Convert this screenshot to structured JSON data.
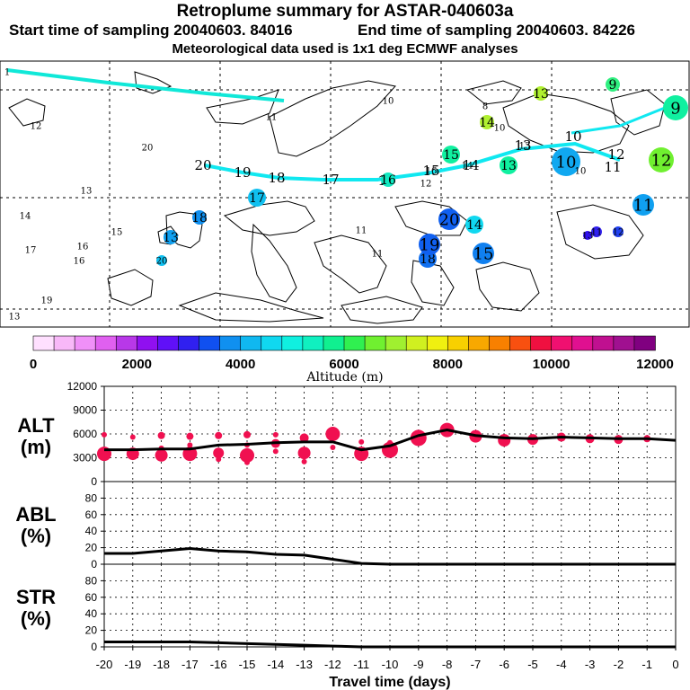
{
  "header": {
    "title": "Retroplume summary for ASTAR-040603a",
    "start": "Start time of sampling 20040603. 84016",
    "end": "End time of sampling 20040603. 84226",
    "met": "Meteorological data used is 1x1 deg ECMWF analyses"
  },
  "colorbar": {
    "label": "Altitude (m)",
    "ticks": [
      "0",
      "2000",
      "4000",
      "6000",
      "8000",
      "10000",
      "12000"
    ],
    "colors": [
      "#ffe0ff",
      "#f8b8f8",
      "#f090f8",
      "#e060f0",
      "#b838e8",
      "#9010f0",
      "#6010f8",
      "#3020f0",
      "#1050f0",
      "#1090f0",
      "#10b8f0",
      "#10d8f0",
      "#10f0e0",
      "#10f0c0",
      "#10f090",
      "#30f050",
      "#70f030",
      "#a0f030",
      "#d0f020",
      "#f0f010",
      "#f8d000",
      "#f8a800",
      "#f88000",
      "#f85010",
      "#f01040",
      "#f01070",
      "#e01090",
      "#c01090",
      "#a01090",
      "#800080"
    ]
  },
  "map": {
    "trajectory_labels": [
      "20",
      "19",
      "18",
      "17",
      "16",
      "15",
      "14",
      "13",
      "12",
      "11",
      "10",
      "9"
    ],
    "cluster_labels": [
      "1",
      "8",
      "9",
      "9",
      "10",
      "10",
      "10",
      "10",
      "11",
      "11",
      "11",
      "11",
      "12",
      "12",
      "12",
      "12",
      "13",
      "13",
      "13",
      "13",
      "13",
      "14",
      "14",
      "14",
      "14",
      "15",
      "15",
      "15",
      "16",
      "16",
      "16",
      "16",
      "17",
      "17",
      "18",
      "18",
      "19",
      "19",
      "20",
      "20",
      "20",
      "11",
      "13",
      "13"
    ]
  },
  "chart_data": [
    {
      "type": "line",
      "id": "alt",
      "ylabel": "ALT (m)",
      "ylabel_line1": "ALT",
      "ylabel_line2": "(m)",
      "ylim": [
        0,
        12000
      ],
      "yticks": [
        "0",
        "3000",
        "6000",
        "9000",
        "12000"
      ],
      "x": [
        -20,
        -19,
        -18,
        -17,
        -16,
        -15,
        -14,
        -13,
        -12,
        -11,
        -10,
        -9,
        -8,
        -7,
        -6,
        -5,
        -4,
        -3,
        -2,
        -1,
        0
      ],
      "values": [
        4000,
        4000,
        4100,
        4100,
        4600,
        4700,
        4900,
        5000,
        5000,
        4000,
        4500,
        5800,
        6500,
        5800,
        5500,
        5400,
        5600,
        5500,
        5400,
        5400,
        5200
      ],
      "scatter": [
        {
          "x": -20,
          "y": 3500,
          "s": 8
        },
        {
          "x": -20,
          "y": 5900,
          "s": 3
        },
        {
          "x": -19,
          "y": 3500,
          "s": 7
        },
        {
          "x": -19,
          "y": 5600,
          "s": 3
        },
        {
          "x": -18,
          "y": 3300,
          "s": 7
        },
        {
          "x": -18,
          "y": 5800,
          "s": 4
        },
        {
          "x": -18,
          "y": 4200,
          "s": 3
        },
        {
          "x": -17,
          "y": 3500,
          "s": 8
        },
        {
          "x": -17,
          "y": 5700,
          "s": 4
        },
        {
          "x": -17,
          "y": 4600,
          "s": 3
        },
        {
          "x": -16,
          "y": 3600,
          "s": 6
        },
        {
          "x": -16,
          "y": 5800,
          "s": 4
        },
        {
          "x": -16,
          "y": 2800,
          "s": 3
        },
        {
          "x": -15,
          "y": 3300,
          "s": 8
        },
        {
          "x": -15,
          "y": 5900,
          "s": 4
        },
        {
          "x": -15,
          "y": 4600,
          "s": 3
        },
        {
          "x": -15,
          "y": 2400,
          "s": 3
        },
        {
          "x": -14,
          "y": 4800,
          "s": 5
        },
        {
          "x": -14,
          "y": 3800,
          "s": 3
        },
        {
          "x": -14,
          "y": 5900,
          "s": 3
        },
        {
          "x": -13,
          "y": 3600,
          "s": 7
        },
        {
          "x": -13,
          "y": 5500,
          "s": 5
        },
        {
          "x": -13,
          "y": 2500,
          "s": 3
        },
        {
          "x": -12,
          "y": 6000,
          "s": 8
        },
        {
          "x": -12,
          "y": 4300,
          "s": 3
        },
        {
          "x": -11,
          "y": 3500,
          "s": 8
        },
        {
          "x": -11,
          "y": 5000,
          "s": 3
        },
        {
          "x": -10,
          "y": 4000,
          "s": 9
        },
        {
          "x": -10,
          "y": 4900,
          "s": 3
        },
        {
          "x": -9,
          "y": 5500,
          "s": 9
        },
        {
          "x": -8,
          "y": 6500,
          "s": 8
        },
        {
          "x": -7,
          "y": 5700,
          "s": 7
        },
        {
          "x": -6,
          "y": 5200,
          "s": 7
        },
        {
          "x": -5,
          "y": 5300,
          "s": 6
        },
        {
          "x": -4,
          "y": 5600,
          "s": 5
        },
        {
          "x": -3,
          "y": 5400,
          "s": 5
        },
        {
          "x": -2,
          "y": 5300,
          "s": 5
        },
        {
          "x": -1,
          "y": 5400,
          "s": 4
        }
      ],
      "dot_color": "#f01050"
    },
    {
      "type": "line",
      "id": "abl",
      "ylabel": "ABL (%)",
      "ylabel_line1": "ABL",
      "ylabel_line2": "(%)",
      "ylim": [
        0,
        100
      ],
      "yticks": [
        "0",
        "20",
        "40",
        "60",
        "80"
      ],
      "x": [
        -20,
        -19,
        -18,
        -17,
        -16,
        -15,
        -14,
        -13,
        -12,
        -11,
        -10,
        -9,
        -8,
        -7,
        -6,
        -5,
        -4,
        -3,
        -2,
        -1,
        0
      ],
      "values": [
        13,
        13,
        16,
        19,
        16,
        15,
        12,
        11,
        6,
        1,
        0,
        0,
        0,
        0,
        0,
        0,
        0,
        0,
        0,
        0,
        0
      ]
    },
    {
      "type": "line",
      "id": "str",
      "ylabel": "STR (%)",
      "ylabel_line1": "STR",
      "ylabel_line2": "(%)",
      "ylim": [
        0,
        100
      ],
      "yticks": [
        "0",
        "20",
        "40",
        "60",
        "80"
      ],
      "x": [
        -20,
        -19,
        -18,
        -17,
        -16,
        -15,
        -14,
        -13,
        -12,
        -11,
        -10,
        -9,
        -8,
        -7,
        -6,
        -5,
        -4,
        -3,
        -2,
        -1,
        0
      ],
      "values": [
        6,
        6,
        6,
        6,
        5,
        4,
        3,
        2,
        1,
        0,
        0,
        0,
        0,
        0,
        0,
        0,
        0,
        0,
        0,
        0,
        0
      ],
      "xlabel": "Travel time (days)",
      "xticks": [
        "-20",
        "-19",
        "-18",
        "-17",
        "-16",
        "-15",
        "-14",
        "-13",
        "-12",
        "-11",
        "-10",
        "-9",
        "-8",
        "-7",
        "-6",
        "-5",
        "-4",
        "-3",
        "-2",
        "-1",
        "0"
      ]
    }
  ]
}
